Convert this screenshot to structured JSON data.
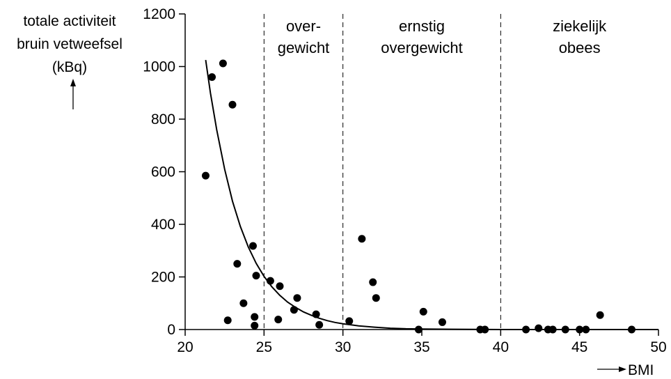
{
  "chart_data": {
    "type": "scatter",
    "ylabel_lines": [
      "totale activiteit",
      "bruin vetweefsel",
      "(kBq)"
    ],
    "xlabel": "BMI",
    "xlim": [
      20,
      50
    ],
    "ylim": [
      0,
      1200
    ],
    "x_ticks": [
      20,
      25,
      30,
      35,
      40,
      45,
      50
    ],
    "y_ticks": [
      0,
      200,
      400,
      600,
      800,
      1000,
      1200
    ],
    "grid": false,
    "region_boundaries": [
      25,
      30,
      40
    ],
    "regions": [
      {
        "lines": [
          "over-",
          "gewicht"
        ],
        "from": 25,
        "to": 30
      },
      {
        "lines": [
          "ernstig",
          "overgewicht"
        ],
        "from": 30,
        "to": 40
      },
      {
        "lines": [
          "ziekelijk",
          "obees"
        ],
        "from": 40,
        "to": 50
      }
    ],
    "points": [
      [
        21.3,
        585
      ],
      [
        21.7,
        960
      ],
      [
        22.4,
        1012
      ],
      [
        22.7,
        35
      ],
      [
        23.0,
        855
      ],
      [
        23.3,
        250
      ],
      [
        23.7,
        100
      ],
      [
        24.3,
        318
      ],
      [
        24.4,
        48
      ],
      [
        24.4,
        15
      ],
      [
        24.5,
        205
      ],
      [
        25.4,
        185
      ],
      [
        25.9,
        38
      ],
      [
        26.0,
        165
      ],
      [
        26.9,
        75
      ],
      [
        27.1,
        120
      ],
      [
        28.3,
        58
      ],
      [
        28.5,
        18
      ],
      [
        30.4,
        32
      ],
      [
        31.2,
        345
      ],
      [
        31.9,
        180
      ],
      [
        32.1,
        120
      ],
      [
        34.8,
        0
      ],
      [
        35.1,
        68
      ],
      [
        36.3,
        28
      ],
      [
        38.7,
        0
      ],
      [
        39.0,
        0
      ],
      [
        41.6,
        0
      ],
      [
        42.4,
        5
      ],
      [
        43.0,
        0
      ],
      [
        43.3,
        0
      ],
      [
        44.1,
        0
      ],
      [
        45.0,
        0
      ],
      [
        45.4,
        0
      ],
      [
        46.3,
        55
      ],
      [
        48.3,
        0
      ]
    ],
    "trend_curve": {
      "type": "exponential_decay",
      "x": [
        21.3,
        21.6,
        22.0,
        22.5,
        23.0,
        23.5,
        24.0,
        24.5,
        25.0,
        25.5,
        26.0,
        26.5,
        27.0,
        27.5,
        28.0,
        28.5,
        29.0,
        29.5,
        30.0,
        31.0,
        32.0,
        33.0,
        34.0,
        35.0,
        37.0,
        40.0,
        45.0,
        50.0
      ],
      "y": [
        1025,
        900,
        760,
        610,
        488,
        392,
        314,
        252,
        202,
        162,
        130,
        104,
        84,
        67,
        54,
        43,
        34,
        27,
        22,
        14,
        9,
        5,
        3,
        2,
        1,
        0,
        0,
        0
      ]
    },
    "colors": {
      "axis": "#000000",
      "points": "#000000",
      "curve": "#000000"
    }
  }
}
